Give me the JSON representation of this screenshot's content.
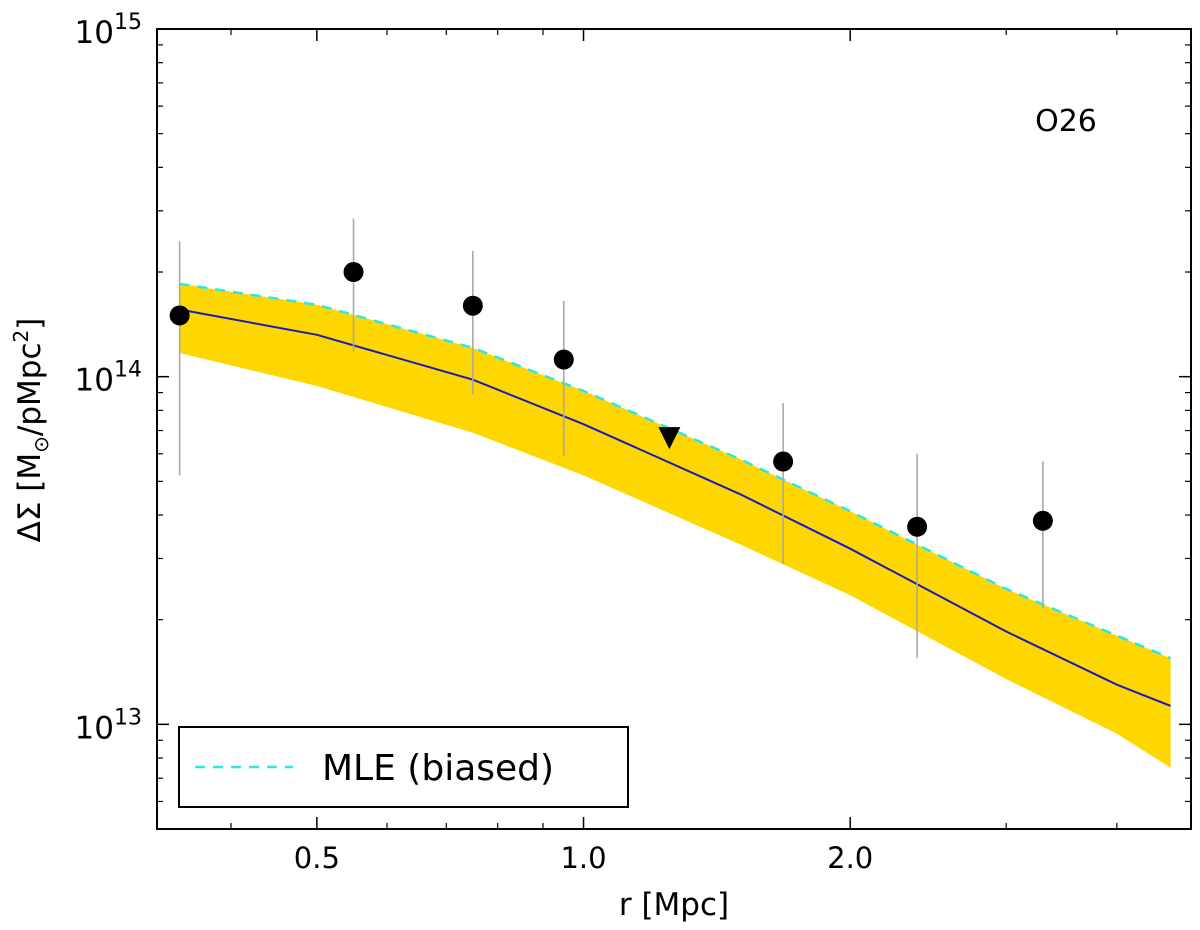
{
  "chart_data": {
    "type": "scatter",
    "xscale": "log",
    "yscale": "log",
    "xlim": [
      0.33,
      4.85
    ],
    "ylim": [
      5000000000000.0,
      1000000000000000.0
    ],
    "xlabel": "r [Mpc]",
    "ylabel": {
      "prefix": "ΔΣ [M",
      "sub": "⊙",
      "middle": "/pMpc",
      "sup": "2",
      "suffix": "]"
    },
    "annotation": "O26",
    "x_ticks": [
      {
        "value": 0.5,
        "label": "0.5"
      },
      {
        "value": 1.0,
        "label": "1.0"
      },
      {
        "value": 2.0,
        "label": "2.0"
      }
    ],
    "y_ticks": [
      {
        "value": 10000000000000.0,
        "base": "10",
        "exp": "13"
      },
      {
        "value": 100000000000000.0,
        "base": "10",
        "exp": "14"
      },
      {
        "value": 1000000000000000.0,
        "base": "10",
        "exp": "15"
      }
    ],
    "series": [
      {
        "name": "data",
        "kind": "points",
        "marker": "circle",
        "x": [
          0.35,
          0.55,
          0.75,
          0.95,
          1.68,
          2.38,
          3.3
        ],
        "y": [
          150000000000000.0,
          200000000000000.0,
          160000000000000.0,
          112000000000000.0,
          57000000000000.0,
          37000000000000.0,
          38500000000000.0
        ],
        "err_lo": [
          52000000000000.0,
          118000000000000.0,
          89000000000000.0,
          59000000000000.0,
          29000000000000.0,
          15500000000000.0,
          21500000000000.0
        ],
        "err_hi": [
          245000000000000.0,
          285000000000000.0,
          230000000000000.0,
          165000000000000.0,
          84000000000000.0,
          60000000000000.0,
          57000000000000.0
        ]
      },
      {
        "name": "upper-limit",
        "kind": "points",
        "marker": "triangle-down",
        "x": [
          1.25
        ],
        "y": [
          67000000000000.0
        ]
      },
      {
        "name": "confidence band",
        "kind": "band",
        "x": [
          0.35,
          0.5,
          0.75,
          1.0,
          1.5,
          2.0,
          3.0,
          4.0,
          4.6
        ],
        "lower": [
          117000000000000.0,
          94000000000000.0,
          69000000000000.0,
          52000000000000.0,
          33000000000000.0,
          23500000000000.0,
          13500000000000.0,
          9400000000000.0,
          7500000000000.0
        ],
        "upper": [
          185000000000000.0,
          161000000000000.0,
          121000000000000.0,
          91000000000000.0,
          58000000000000.0,
          41000000000000.0,
          24500000000000.0,
          18000000000000.0,
          15500000000000.0
        ]
      },
      {
        "name": "model",
        "kind": "line",
        "x": [
          0.35,
          0.5,
          0.75,
          1.0,
          1.5,
          2.0,
          3.0,
          4.0,
          4.6
        ],
        "y": [
          156000000000000.0,
          132000000000000.0,
          98000000000000.0,
          73000000000000.0,
          46000000000000.0,
          32000000000000.0,
          18500000000000.0,
          13000000000000.0,
          11300000000000.0
        ]
      },
      {
        "name": "MLE (biased)",
        "kind": "line",
        "style": "dashed",
        "x": [
          0.35,
          0.5,
          0.75,
          1.0,
          1.5,
          2.0,
          3.0,
          4.0,
          4.6
        ],
        "y": [
          185000000000000.0,
          161000000000000.0,
          121000000000000.0,
          91000000000000.0,
          58000000000000.0,
          41000000000000.0,
          24500000000000.0,
          18000000000000.0,
          15500000000000.0
        ]
      }
    ],
    "legend": {
      "placement": "lower-left",
      "entries": [
        {
          "label": "MLE (biased)",
          "series": "MLE (biased)"
        }
      ]
    },
    "colors": {
      "band": "#ffd700",
      "model": "#1c1cb4",
      "mle": "#2ee6e6",
      "points": "#000000",
      "errorbar": "#a9a9a9"
    }
  }
}
